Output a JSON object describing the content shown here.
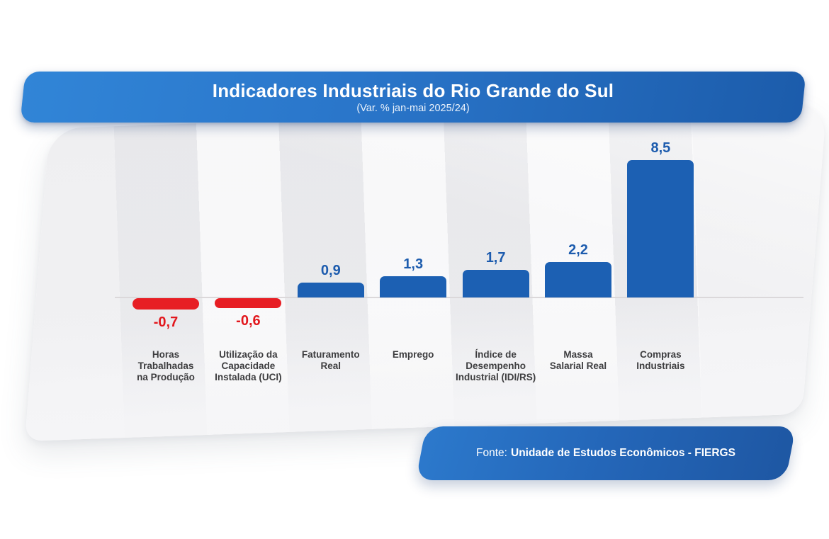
{
  "header": {
    "title": "Indicadores Industriais do Rio Grande do Sul",
    "subtitle": "(Var. % jan-mai 2025/24)"
  },
  "footer": {
    "prefix": "Fonte:",
    "source": "Unidade de Estudos Econômicos - FIERGS"
  },
  "chart_data": {
    "type": "bar",
    "title": "Indicadores Industriais do Rio Grande do Sul",
    "subtitle": "(Var. % jan-mai 2025/24)",
    "unit": "%",
    "grid": false,
    "baseline": 0,
    "ylim": [
      -1.5,
      9.5
    ],
    "categories": [
      "Horas Trabalhadas na Produção",
      "Utilização da Capacidade Instalada (UCI)",
      "Faturamento Real",
      "Emprego",
      "Índice de Desempenho Industrial (IDI/RS)",
      "Massa Salarial Real",
      "Compras Industriais"
    ],
    "values": [
      -0.7,
      -0.6,
      0.9,
      1.3,
      1.7,
      2.2,
      8.5
    ],
    "bars": [
      {
        "category": "Horas Trabalhadas na Produção",
        "label_lines": [
          "Horas",
          "Trabalhadas",
          "na Produção"
        ],
        "value": -0.7,
        "display": "-0,7"
      },
      {
        "category": "Utilização da Capacidade Instalada (UCI)",
        "label_lines": [
          "Utilização da",
          "Capacidade",
          "Instalada (UCI)"
        ],
        "value": -0.6,
        "display": "-0,6"
      },
      {
        "category": "Faturamento Real",
        "label_lines": [
          "Faturamento",
          "Real"
        ],
        "value": 0.9,
        "display": "0,9"
      },
      {
        "category": "Emprego",
        "label_lines": [
          "Emprego"
        ],
        "value": 1.3,
        "display": "1,3"
      },
      {
        "category": "Índice de Desempenho Industrial (IDI/RS)",
        "label_lines": [
          "Índice de",
          "Desempenho",
          "Industrial (IDI/RS)"
        ],
        "value": 1.7,
        "display": "1,7"
      },
      {
        "category": "Massa Salarial Real",
        "label_lines": [
          "Massa",
          "Salarial Real"
        ],
        "value": 2.2,
        "display": "2,2"
      },
      {
        "category": "Compras Industriais",
        "label_lines": [
          "Compras",
          "Industriais"
        ],
        "value": 8.5,
        "display": "8,5"
      }
    ],
    "colors": {
      "positive_bar": "#1c60b3",
      "negative_bar": "#e71e24",
      "positive_label": "#1d5cae",
      "negative_label": "#e2171d",
      "banner_gradient_start": "#3185d7",
      "banner_gradient_end": "#1c5cab",
      "panel_background": "#f1f1f3",
      "axis_line": "#dbd8da"
    },
    "legend": null
  }
}
